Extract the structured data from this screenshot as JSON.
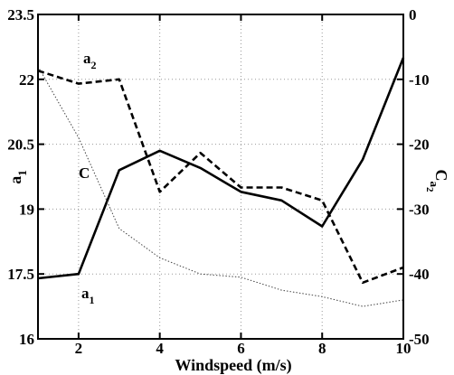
{
  "chart_data": {
    "type": "line",
    "title": "",
    "xlabel": "Windspeed (m/s)",
    "ylabel_left": "a_1",
    "ylabel_right": "C_a2",
    "xlim": [
      1,
      10
    ],
    "ylim_left": [
      16,
      23.5
    ],
    "ylim_right": [
      -50,
      0
    ],
    "xticks": [
      "2",
      "4",
      "6",
      "8",
      "10"
    ],
    "yticks_left": [
      "16",
      "17.5",
      "19",
      "20.5",
      "22",
      "23.5"
    ],
    "yticks_right": [
      "-50",
      "-40",
      "-30",
      "-20",
      "-10",
      "0"
    ],
    "grid": true,
    "x": [
      1,
      2,
      3,
      4,
      5,
      6,
      7,
      8,
      9,
      10
    ],
    "series": [
      {
        "name": "a_1",
        "axis": "left",
        "style": "solid",
        "values": [
          17.4,
          17.5,
          19.9,
          20.35,
          19.95,
          19.4,
          19.2,
          18.6,
          20.15,
          22.5
        ]
      },
      {
        "name": "a_2",
        "axis": "left",
        "style": "dashed",
        "values": [
          22.2,
          21.9,
          22.0,
          19.4,
          20.3,
          19.5,
          19.5,
          19.2,
          17.3,
          17.65
        ]
      },
      {
        "name": "C",
        "axis": "right",
        "style": "dotted",
        "values": [
          -8,
          -19,
          -33,
          -37.5,
          -40,
          -40.5,
          -42.5,
          -43.5,
          -45,
          -44
        ]
      }
    ],
    "labels": {
      "a1": {
        "main": "a",
        "sub": "1"
      },
      "a2": {
        "main": "a",
        "sub": "2"
      },
      "c": "C",
      "ylabel_left": {
        "main": "a",
        "sub": "1"
      },
      "ylabel_right": {
        "main": "C",
        "sub": "a",
        "subsub": "2"
      }
    }
  }
}
